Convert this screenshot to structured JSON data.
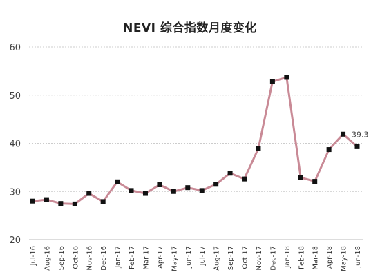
{
  "chart_data": {
    "type": "line",
    "title": "NEVI 综合指数月度变化",
    "xlabel": "",
    "ylabel": "",
    "ylim": [
      20,
      60
    ],
    "yticks": [
      20,
      30,
      40,
      50,
      60
    ],
    "grid": true,
    "categories": [
      "Jul-16",
      "Aug-16",
      "Sep-16",
      "Oct-16",
      "Nov-16",
      "Dec-16",
      "Jan-17",
      "Feb-17",
      "Mar-17",
      "Apr-17",
      "May-17",
      "Jun-17",
      "Jul-17",
      "Aug-17",
      "Sep-17",
      "Oct-17",
      "Nov-17",
      "Dec-17",
      "Jan-18",
      "Feb-18",
      "Mar-18",
      "Apr-18",
      "May-18",
      "Jun-18"
    ],
    "series": [
      {
        "values": [
          28.0,
          28.3,
          27.5,
          27.4,
          29.6,
          27.9,
          32.0,
          30.2,
          29.6,
          31.4,
          30.0,
          30.8,
          30.2,
          31.5,
          33.8,
          32.6,
          38.9,
          52.8,
          53.7,
          32.9,
          32.1,
          38.7,
          41.9,
          39.3
        ],
        "color": "#c98a96",
        "marker_color": "#111111"
      }
    ],
    "data_labels": [
      {
        "index": 23,
        "text": "39.3"
      }
    ]
  }
}
